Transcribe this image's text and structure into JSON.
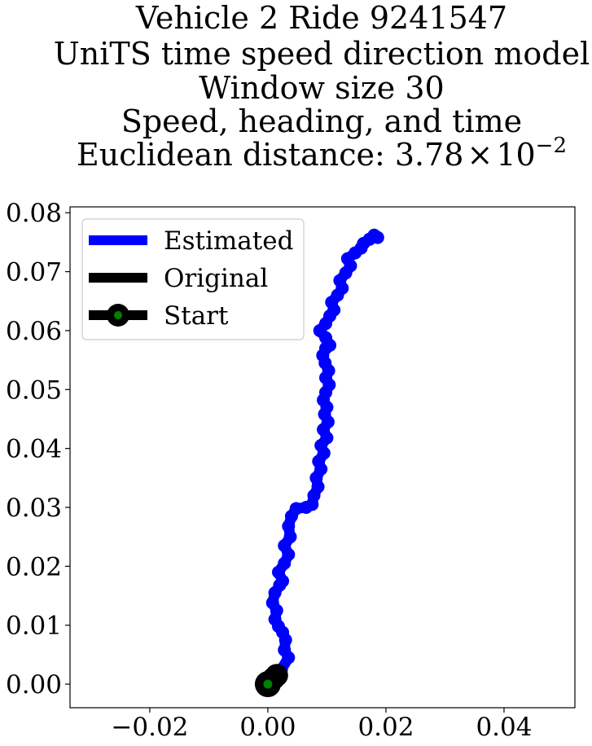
{
  "chart_data": {
    "type": "line",
    "title_lines": [
      "Vehicle 2 Ride 9241547",
      "UniTS time speed direction model",
      "Window size 30",
      "Speed, heading, and time"
    ],
    "title_distance_prefix": "Euclidean distance: ",
    "title_distance_mantissa": "3.78",
    "title_distance_times": "×",
    "title_distance_base": "10",
    "title_distance_exponent": "−2",
    "xlabel": "",
    "ylabel": "",
    "xlim": [
      -0.0335,
      0.052
    ],
    "ylim": [
      -0.004,
      0.081
    ],
    "xticks": [
      -0.02,
      0.0,
      0.02,
      0.04
    ],
    "xtick_labels": [
      "−0.02",
      "0.00",
      "0.02",
      "0.04"
    ],
    "yticks": [
      0.0,
      0.01,
      0.02,
      0.03,
      0.04,
      0.05,
      0.06,
      0.07,
      0.08
    ],
    "ytick_labels": [
      "0.00",
      "0.01",
      "0.02",
      "0.03",
      "0.04",
      "0.05",
      "0.06",
      "0.07",
      "0.08"
    ],
    "grid": false,
    "legend_position": "top-left",
    "series": [
      {
        "name": "Estimated",
        "color": "#0000ff",
        "x": [
          0.0,
          0.001,
          0.0023,
          0.0035,
          0.0028,
          0.003,
          0.0025,
          0.0018,
          0.0012,
          0.0015,
          0.0008,
          0.0012,
          0.002,
          0.0025,
          0.0018,
          0.0028,
          0.0035,
          0.0028,
          0.0038,
          0.0035,
          0.004,
          0.0048,
          0.0065,
          0.0075,
          0.0078,
          0.0085,
          0.0082,
          0.009,
          0.0086,
          0.0095,
          0.009,
          0.01,
          0.0094,
          0.0102,
          0.0096,
          0.01,
          0.0094,
          0.0098,
          0.0104,
          0.0098,
          0.0103,
          0.0097,
          0.0093,
          0.0098,
          0.0105,
          0.0098,
          0.0088,
          0.0098,
          0.0105,
          0.0112,
          0.0108,
          0.0118,
          0.0126,
          0.0122,
          0.0132,
          0.014,
          0.0135,
          0.0148,
          0.0158,
          0.0162,
          0.0172,
          0.018,
          0.0186
        ],
        "y": [
          0.0,
          0.0012,
          0.0025,
          0.0045,
          0.0058,
          0.0075,
          0.0088,
          0.0098,
          0.011,
          0.0125,
          0.0138,
          0.0155,
          0.0168,
          0.0175,
          0.019,
          0.0205,
          0.022,
          0.0235,
          0.025,
          0.0268,
          0.0285,
          0.0298,
          0.03,
          0.0305,
          0.032,
          0.0335,
          0.035,
          0.0365,
          0.0378,
          0.0392,
          0.0405,
          0.0418,
          0.0432,
          0.0445,
          0.0458,
          0.047,
          0.0482,
          0.0495,
          0.0508,
          0.052,
          0.0532,
          0.0545,
          0.0558,
          0.057,
          0.0575,
          0.0588,
          0.06,
          0.0612,
          0.0625,
          0.0635,
          0.0648,
          0.066,
          0.0672,
          0.0685,
          0.0698,
          0.071,
          0.0722,
          0.0732,
          0.074,
          0.0748,
          0.0755,
          0.0762,
          0.0758
        ]
      },
      {
        "name": "Original",
        "color": "#000000",
        "x": [
          0.0,
          0.0005,
          0.001,
          0.0015
        ],
        "y": [
          0.0,
          0.0005,
          0.001,
          0.0015
        ]
      }
    ],
    "start": {
      "name": "Start",
      "x": 0.0,
      "y": 0.0,
      "edge_color": "#000000",
      "face_color": "#008000"
    }
  }
}
